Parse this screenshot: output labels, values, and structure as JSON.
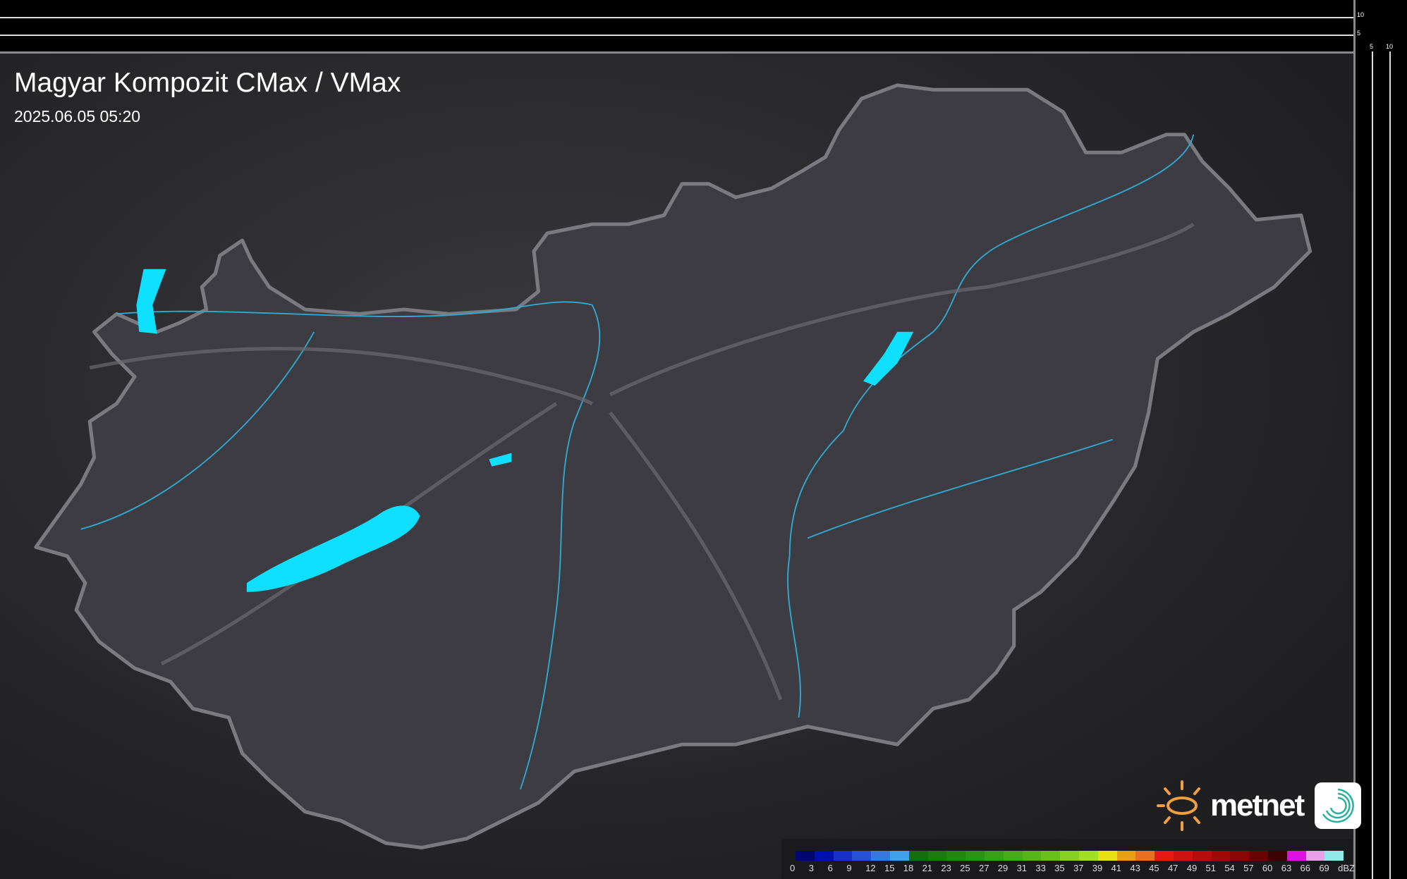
{
  "title": "Magyar Kompozit CMax / VMax",
  "timestamp": "2025.06.05 05:20",
  "scales": {
    "vertical_labels": [
      "10",
      "5"
    ],
    "horizontal_labels": [
      "5",
      "10"
    ]
  },
  "logo": {
    "text": "metnet",
    "sun_color": "#f0a040",
    "app_icon_color": "#2ab0a0"
  },
  "legend": {
    "unit": "dBZ",
    "labels": [
      "0",
      "3",
      "6",
      "9",
      "12",
      "15",
      "18",
      "21",
      "23",
      "25",
      "27",
      "29",
      "31",
      "33",
      "35",
      "37",
      "39",
      "41",
      "43",
      "45",
      "47",
      "49",
      "51",
      "54",
      "57",
      "60",
      "63",
      "66",
      "69"
    ],
    "colors": [
      "#000870",
      "#0010b0",
      "#1830c8",
      "#2850d8",
      "#3878e0",
      "#40a0e8",
      "#186c10",
      "#1e7a10",
      "#24880e",
      "#2c9414",
      "#3aa018",
      "#48aa18",
      "#58b418",
      "#68c018",
      "#88d020",
      "#a0e020",
      "#e8e010",
      "#e8a010",
      "#e87020",
      "#e81818",
      "#d01010",
      "#b80c0c",
      "#a00808",
      "#880606",
      "#680404",
      "#3a0202",
      "#e010e0",
      "#e8a0e8",
      "#90e8e8"
    ]
  },
  "map": {
    "land_color": "#3a3a40",
    "border_color": "#7a7a80",
    "river_color": "#30a8d0",
    "lake_color": "#10e0ff"
  }
}
